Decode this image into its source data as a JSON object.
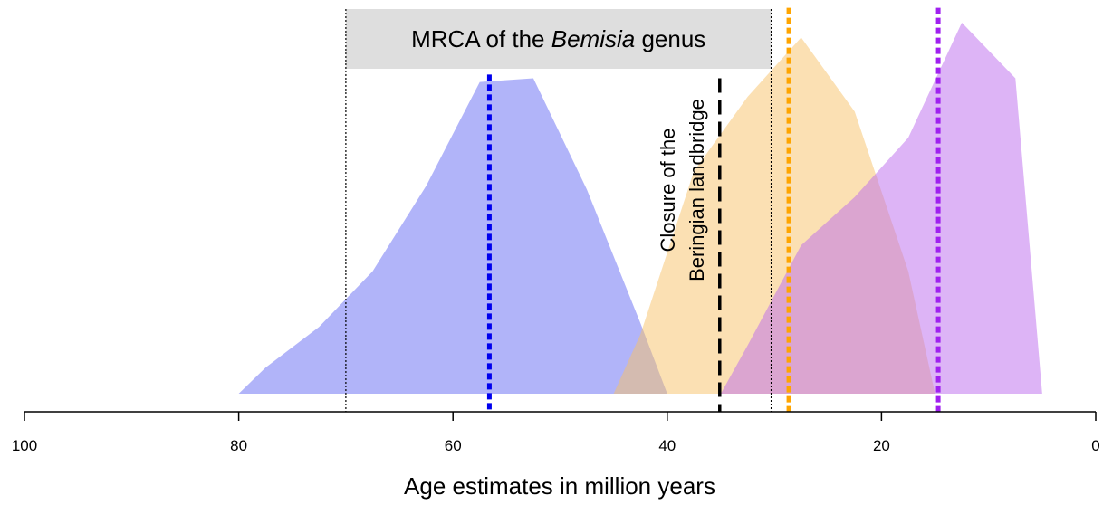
{
  "chart_data": {
    "type": "area",
    "xlabel": "Age estimates in million years",
    "xlim": [
      100,
      0
    ],
    "xticks": [
      100,
      80,
      60,
      40,
      20,
      0
    ],
    "ylim": [
      0,
      1
    ],
    "series": [
      {
        "color": "#6369f3",
        "x": [
          80,
          77.5,
          72.5,
          67.5,
          62.5,
          57.5,
          52.5,
          47.5,
          42.5,
          40
        ],
        "values": [
          0,
          0.07,
          0.18,
          0.33,
          0.56,
          0.84,
          0.85,
          0.55,
          0.19,
          0
        ]
      },
      {
        "color": "#f7c167",
        "x": [
          45,
          42.5,
          37.5,
          32.5,
          27.5,
          22.5,
          17.5,
          15
        ],
        "values": [
          0,
          0.16,
          0.6,
          0.8,
          0.96,
          0.76,
          0.33,
          0
        ]
      },
      {
        "color": "#bb69ed",
        "x": [
          35,
          32.5,
          27.5,
          22.5,
          17.5,
          12.5,
          7.5,
          5
        ],
        "values": [
          0,
          0.13,
          0.4,
          0.53,
          0.69,
          1.0,
          0.85,
          0
        ]
      }
    ],
    "vlines": [
      {
        "x": 56.6,
        "color": "#0000ee",
        "style": "dotted",
        "top": 0.86
      },
      {
        "x": 28.65,
        "color": "#ffa500",
        "style": "dotted",
        "top": 1.04
      },
      {
        "x": 14.7,
        "color": "#a020f0",
        "style": "dotted",
        "top": 1.04
      },
      {
        "x": 35.1,
        "color": "#000000",
        "style": "dashed",
        "top": 0.85
      }
    ],
    "bracket": {
      "x": [
        70,
        30.3
      ],
      "text": [
        "MRCA of the ",
        "Bemisia",
        " genus"
      ]
    },
    "annotation": [
      "Closure of the",
      "Beringian landbridge"
    ]
  }
}
